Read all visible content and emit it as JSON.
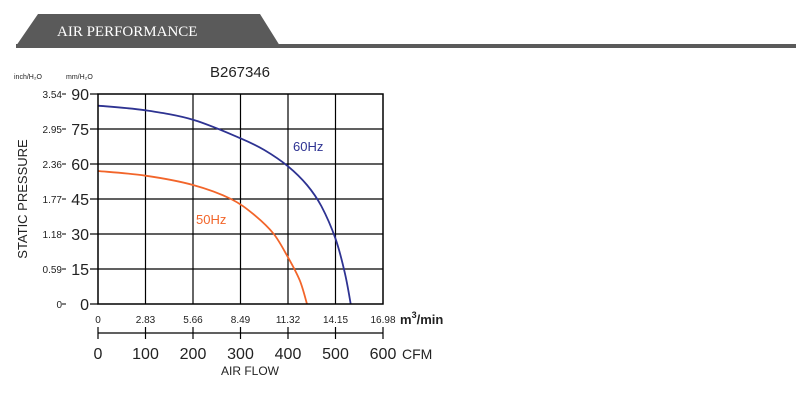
{
  "header": {
    "title": "AIR PERFORMANCE"
  },
  "chart_data": {
    "type": "line",
    "title": "B267346",
    "ylabel": "STATIC PRESSURE",
    "xlabel": "AIR FLOW",
    "y_units": {
      "inch": "inch/H₂O",
      "mm": "mm/H₂O"
    },
    "y_ticks_mm": [
      "0",
      "15",
      "30",
      "45",
      "60",
      "75",
      "90"
    ],
    "y_ticks_inch": [
      "0",
      "0.59",
      "1.18",
      "1.77",
      "2.36",
      "2.95",
      "3.54"
    ],
    "x_ticks_m3min": [
      "0",
      "2.83",
      "5.66",
      "8.49",
      "11.32",
      "14.15",
      "16.98"
    ],
    "x_unit_m3min": "m³/min",
    "x_ticks_cfm": [
      "0",
      "100",
      "200",
      "300",
      "400",
      "500",
      "600"
    ],
    "x_unit_cfm": "CFM",
    "xlim_cfm": [
      0,
      600
    ],
    "ylim_mm": [
      0,
      90
    ],
    "grid": true,
    "series": [
      {
        "name": "60Hz",
        "color": "#2e3392",
        "x_cfm": [
          0,
          100,
          200,
          300,
          350,
          400,
          440,
          470,
          500,
          520,
          532
        ],
        "y_mm": [
          85,
          83,
          79,
          71,
          66,
          59,
          51,
          42,
          28,
          13,
          0
        ]
      },
      {
        "name": "50Hz",
        "color": "#f2652a",
        "x_cfm": [
          0,
          100,
          200,
          280,
          330,
          370,
          400,
          425,
          440
        ],
        "y_mm": [
          57,
          55,
          51,
          45,
          38,
          30,
          20,
          10,
          0
        ]
      }
    ]
  }
}
